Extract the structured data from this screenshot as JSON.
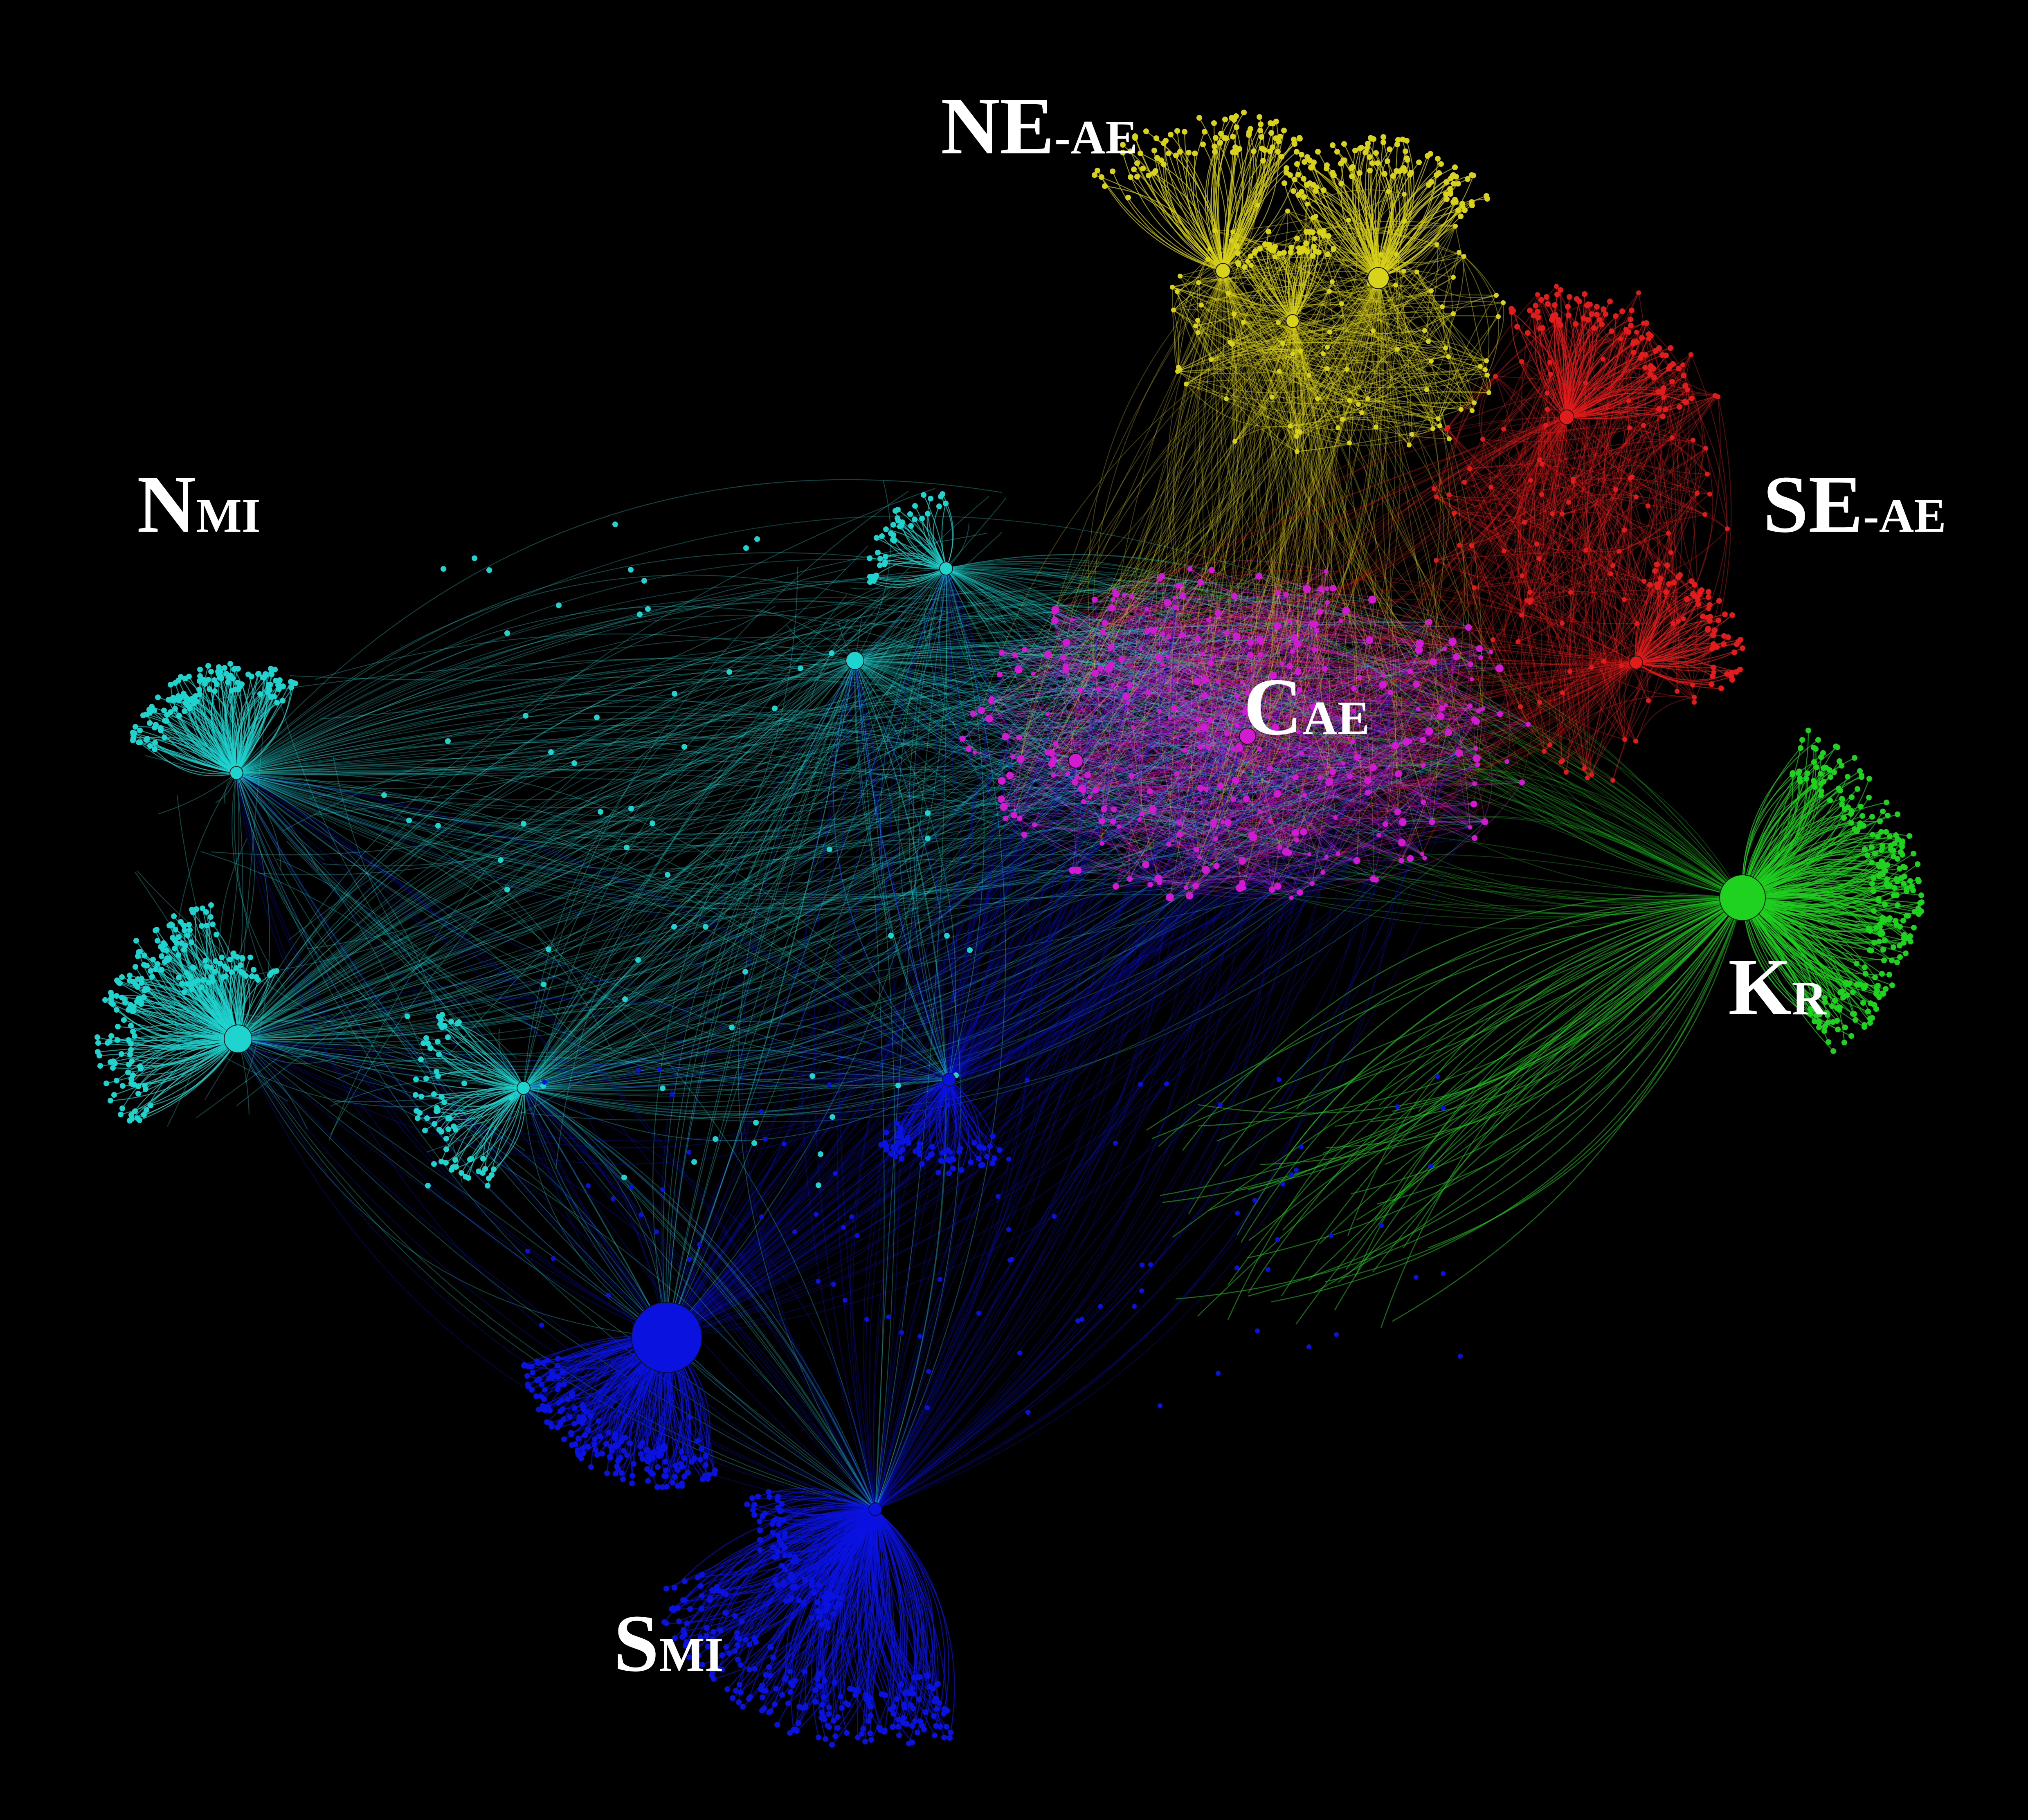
{
  "canvas": {
    "background": "#000000"
  },
  "labels": [
    {
      "id": "n-mi",
      "main": "N",
      "sub": "MI"
    },
    {
      "id": "ne-ae",
      "main": "NE",
      "sub": "-AE"
    },
    {
      "id": "se-ae",
      "main": "SE",
      "sub": "-AE"
    },
    {
      "id": "c-ae",
      "main": "C",
      "sub": "AE"
    },
    {
      "id": "k-r",
      "main": "K",
      "sub": "R"
    },
    {
      "id": "s-mi",
      "main": "S",
      "sub": "MI"
    }
  ],
  "clusters": [
    {
      "id": "n-mi",
      "color": "#1fd3cf"
    },
    {
      "id": "ne-ae",
      "color": "#d9d21a"
    },
    {
      "id": "se-ae",
      "color": "#e21b1b"
    },
    {
      "id": "c-ae",
      "color": "#d21ad2"
    },
    {
      "id": "k-r",
      "color": "#1fd21f"
    },
    {
      "id": "s-mi",
      "color": "#0a12e0"
    }
  ]
}
